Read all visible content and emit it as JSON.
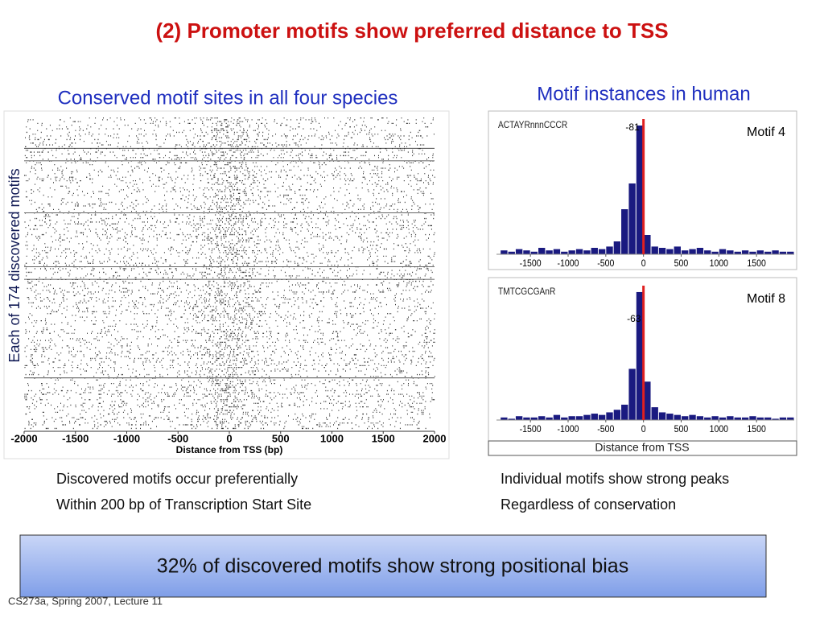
{
  "title": "(2) Promoter motifs show preferred distance to TSS",
  "left_subtitle": "Conserved motif sites in all four species",
  "right_subtitle": "Motif instances in human",
  "right_xlabel": "Distance from TSS",
  "chart_data": [
    {
      "type": "raster",
      "ylabel": "Each of 174 discovered motifs",
      "xlabel": "Distance from TSS (bp)",
      "xlim": [
        -2000,
        2000
      ],
      "xticks": [
        -2000,
        -1500,
        -1000,
        -500,
        0,
        500,
        1000,
        1500,
        2000
      ]
    },
    {
      "type": "histogram",
      "name": "ACTAYRnnnCCCR",
      "motif": "Motif 4",
      "peak": -81,
      "color": "#1a1a80",
      "marker_color": "#e02020",
      "bins": [
        -1900,
        -1800,
        -1700,
        -1600,
        -1500,
        -1400,
        -1300,
        -1200,
        -1100,
        -1000,
        -900,
        -800,
        -700,
        -600,
        -500,
        -400,
        -300,
        -200,
        -100,
        0,
        100,
        200,
        300,
        400,
        500,
        600,
        700,
        800,
        900,
        1000,
        1100,
        1200,
        1300,
        1400,
        1500,
        1600,
        1700,
        1800,
        1900,
        2000
      ],
      "counts": [
        3,
        2,
        4,
        3,
        2,
        5,
        3,
        4,
        2,
        3,
        4,
        3,
        5,
        4,
        6,
        10,
        35,
        55,
        100,
        15,
        6,
        5,
        4,
        6,
        3,
        4,
        5,
        3,
        2,
        4,
        3,
        2,
        3,
        2,
        3,
        2,
        3,
        2,
        2
      ],
      "xlim": [
        -1950,
        2000
      ],
      "ylim": [
        0,
        105
      ],
      "xticks": [
        -1500,
        -1000,
        -500,
        0,
        500,
        1000,
        1500
      ]
    },
    {
      "type": "histogram",
      "name": "TMTCGCGAnR",
      "motif": "Motif 8",
      "peak": -63,
      "color": "#1a1a80",
      "marker_color": "#e02020",
      "bins": [
        -1900,
        -1800,
        -1700,
        -1600,
        -1500,
        -1400,
        -1300,
        -1200,
        -1100,
        -1000,
        -900,
        -800,
        -700,
        -600,
        -500,
        -400,
        -300,
        -200,
        -100,
        0,
        100,
        200,
        300,
        400,
        500,
        600,
        700,
        800,
        900,
        1000,
        1100,
        1200,
        1300,
        1400,
        1500,
        1600,
        1700,
        1800,
        1900,
        2000
      ],
      "counts": [
        2,
        1,
        3,
        2,
        2,
        3,
        2,
        4,
        2,
        3,
        3,
        4,
        5,
        4,
        6,
        8,
        12,
        40,
        100,
        30,
        10,
        6,
        5,
        4,
        3,
        4,
        3,
        2,
        3,
        2,
        3,
        2,
        2,
        3,
        2,
        2,
        1,
        2,
        2
      ],
      "xlim": [
        -1950,
        2000
      ],
      "ylim": [
        0,
        105
      ],
      "xticks": [
        -1500,
        -1000,
        -500,
        0,
        500,
        1000,
        1500
      ]
    }
  ],
  "notes_left": [
    "Discovered motifs occur preferentially",
    "Within 200 bp of Transcription Start Site"
  ],
  "notes_right": [
    "Individual motifs show strong peaks",
    "Regardless of conservation"
  ],
  "banner": "32% of discovered motifs show strong positional bias",
  "footer": "CS273a, Spring 2007, Lecture 11"
}
